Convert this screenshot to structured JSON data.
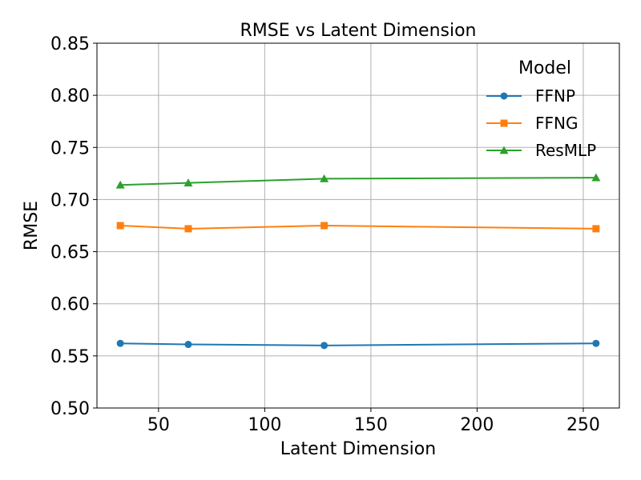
{
  "chart_data": {
    "type": "line",
    "title": "RMSE vs Latent Dimension",
    "xlabel": "Latent Dimension",
    "ylabel": "RMSE",
    "x": [
      32,
      64,
      128,
      256
    ],
    "xlim": [
      21,
      267
    ],
    "ylim": [
      0.5,
      0.85
    ],
    "xticks": [
      50,
      100,
      150,
      200,
      250
    ],
    "xtick_labels": [
      "50",
      "100",
      "150",
      "200",
      "250"
    ],
    "yticks": [
      0.5,
      0.55,
      0.6,
      0.65,
      0.7,
      0.75,
      0.8,
      0.85
    ],
    "ytick_labels": [
      "0.50",
      "0.55",
      "0.60",
      "0.65",
      "0.70",
      "0.75",
      "0.80",
      "0.85"
    ],
    "grid": true,
    "legend": {
      "title": "Model",
      "placement": "top-right"
    },
    "series": [
      {
        "name": "FFNP",
        "values": [
          0.562,
          0.561,
          0.56,
          0.562
        ],
        "color": "#1f77b4",
        "marker": "circle"
      },
      {
        "name": "FFNG",
        "values": [
          0.675,
          0.672,
          0.675,
          0.672
        ],
        "color": "#ff7f0e",
        "marker": "square"
      },
      {
        "name": "ResMLP",
        "values": [
          0.714,
          0.716,
          0.72,
          0.721
        ],
        "color": "#2ca02c",
        "marker": "triangle"
      }
    ]
  }
}
